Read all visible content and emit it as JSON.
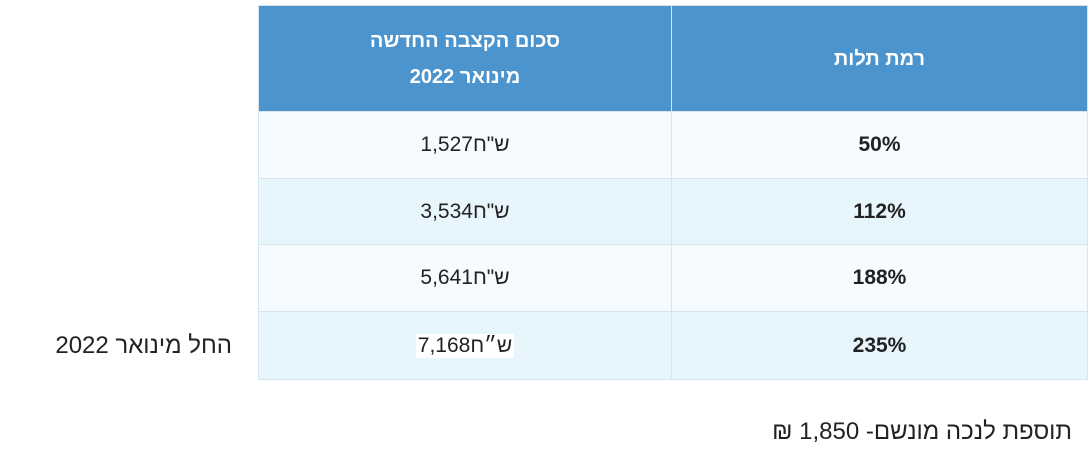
{
  "table": {
    "header": {
      "amount": [
        "סכום הקצבה החדשה",
        "מינואר 2022"
      ],
      "level": "רמת תלות"
    },
    "rows": [
      [
        "50%",
        "1,527ש\"ח"
      ],
      [
        "112%",
        "3,534ש\"ח"
      ],
      [
        "188%",
        "5,641ש\"ח"
      ],
      [
        "235%",
        "7,168ש״ח"
      ]
    ]
  },
  "side_note": "החל מינואר 2022",
  "footer": "תוספת לנכה מונשם- 1,850 ₪"
}
